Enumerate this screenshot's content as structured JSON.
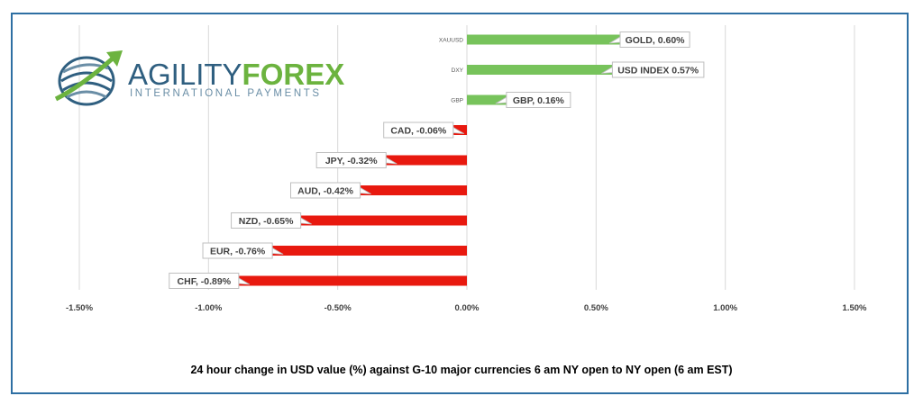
{
  "logo": {
    "word_part1": "AGILITY",
    "word_part2": "FOREX",
    "tagline": "INTERNATIONAL PAYMENTS",
    "colors": {
      "blue": "#2f5f80",
      "green": "#6cb33f"
    }
  },
  "caption": "24 hour change in  USD value (%)  against  G-10 major currencies  6 am NY open to NY open  (6 am EST)",
  "chart_data": {
    "type": "bar",
    "orientation": "horizontal",
    "categories": [
      "XAUUSD",
      "DXY",
      "GBP",
      "",
      "",
      "",
      "",
      "",
      ""
    ],
    "values": [
      0.6,
      0.57,
      0.16,
      -0.06,
      -0.32,
      -0.42,
      -0.65,
      -0.76,
      -0.89
    ],
    "data_labels": [
      "GOLD, 0.60%",
      "USD INDEX 0.57%",
      "GBP, 0.16%",
      "CAD, -0.06%",
      "JPY, -0.32%",
      "AUD, -0.42%",
      "NZD, -0.65%",
      "EUR, -0.76%",
      "CHF, -0.89%"
    ],
    "xlim": [
      -1.5,
      1.5
    ],
    "x_ticks": [
      -1.5,
      -1.0,
      -0.5,
      0.0,
      0.5,
      1.0,
      1.5
    ],
    "x_tick_labels": [
      "-1.50%",
      "-1.00%",
      "-0.50%",
      "0.00%",
      "0.50%",
      "1.00%",
      "1.50%"
    ],
    "grid": true,
    "colors": {
      "positive": "#77c35b",
      "negative": "#e8190f"
    }
  }
}
